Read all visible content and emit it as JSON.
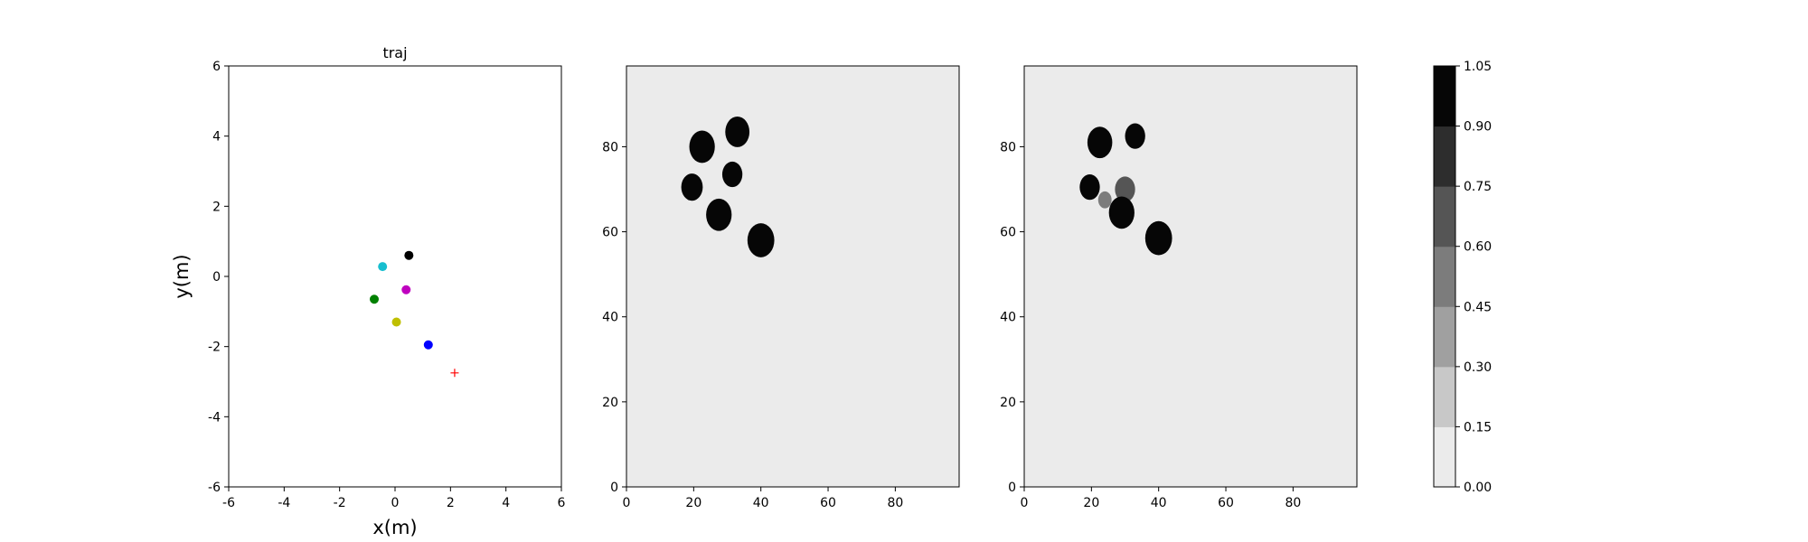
{
  "chart_data": [
    {
      "type": "scatter",
      "title": "traj",
      "xlabel": "x(m)",
      "ylabel": "y(m)",
      "xlim": [
        -6,
        6
      ],
      "ylim": [
        -6,
        6
      ],
      "xticks": [
        -6,
        -4,
        -2,
        0,
        2,
        4,
        6
      ],
      "yticks": [
        -6,
        -4,
        -2,
        0,
        2,
        4,
        6
      ],
      "grid": false,
      "points": [
        {
          "x": 0.5,
          "y": 0.6,
          "color": "#000000",
          "marker": "dot"
        },
        {
          "x": -0.45,
          "y": 0.28,
          "color": "#17becf",
          "marker": "dot"
        },
        {
          "x": 0.4,
          "y": -0.38,
          "color": "#bf00bf",
          "marker": "dot"
        },
        {
          "x": -0.75,
          "y": -0.65,
          "color": "#008000",
          "marker": "dot"
        },
        {
          "x": 0.05,
          "y": -1.3,
          "color": "#bfbf00",
          "marker": "dot"
        },
        {
          "x": 1.2,
          "y": -1.95,
          "color": "#0000ff",
          "marker": "dot"
        },
        {
          "x": 2.15,
          "y": -2.75,
          "color": "#ff0000",
          "marker": "plus"
        }
      ]
    },
    {
      "type": "heatmap",
      "title": "",
      "xlabel": "",
      "ylabel": "",
      "xlim": [
        0,
        99
      ],
      "ylim": [
        0,
        99
      ],
      "xticks": [
        0,
        20,
        40,
        60,
        80
      ],
      "yticks": [
        0,
        20,
        40,
        60,
        80
      ],
      "background_value": 0.0,
      "blobs": [
        {
          "cx": 22.5,
          "cy": 80,
          "r": 3.8,
          "value": 1.0
        },
        {
          "cx": 33,
          "cy": 83.5,
          "r": 3.6,
          "value": 1.0
        },
        {
          "cx": 31.5,
          "cy": 73.5,
          "r": 3.0,
          "value": 1.0
        },
        {
          "cx": 19.5,
          "cy": 70.5,
          "r": 3.2,
          "value": 1.0
        },
        {
          "cx": 27.5,
          "cy": 64,
          "r": 3.8,
          "value": 1.0
        },
        {
          "cx": 40,
          "cy": 58,
          "r": 4.0,
          "value": 1.0
        }
      ]
    },
    {
      "type": "heatmap",
      "title": "",
      "xlabel": "",
      "ylabel": "",
      "xlim": [
        0,
        99
      ],
      "ylim": [
        0,
        99
      ],
      "xticks": [
        0,
        20,
        40,
        60,
        80
      ],
      "yticks": [
        0,
        20,
        40,
        60,
        80
      ],
      "background_value": 0.0,
      "blobs": [
        {
          "cx": 22.5,
          "cy": 81,
          "r": 3.7,
          "value": 1.0
        },
        {
          "cx": 33,
          "cy": 82.5,
          "r": 3.0,
          "value": 1.0
        },
        {
          "cx": 19.5,
          "cy": 70.5,
          "r": 3.0,
          "value": 1.0
        },
        {
          "cx": 24,
          "cy": 67.5,
          "r": 2.0,
          "value": 0.45
        },
        {
          "cx": 30,
          "cy": 70,
          "r": 3.0,
          "value": 0.6
        },
        {
          "cx": 29,
          "cy": 64.5,
          "r": 3.8,
          "value": 1.0
        },
        {
          "cx": 40,
          "cy": 58.5,
          "r": 4.0,
          "value": 1.0
        }
      ]
    }
  ],
  "colorbar": {
    "levels": [
      0.0,
      0.15,
      0.3,
      0.45,
      0.6,
      0.75,
      0.9,
      1.05
    ],
    "tick_labels": [
      "0.00",
      "0.15",
      "0.30",
      "0.45",
      "0.60",
      "0.75",
      "0.90",
      "1.05"
    ],
    "colors": [
      "#ebebeb",
      "#c8c8c8",
      "#a0a0a0",
      "#7c7c7c",
      "#555555",
      "#2d2d2d",
      "#060606"
    ]
  }
}
